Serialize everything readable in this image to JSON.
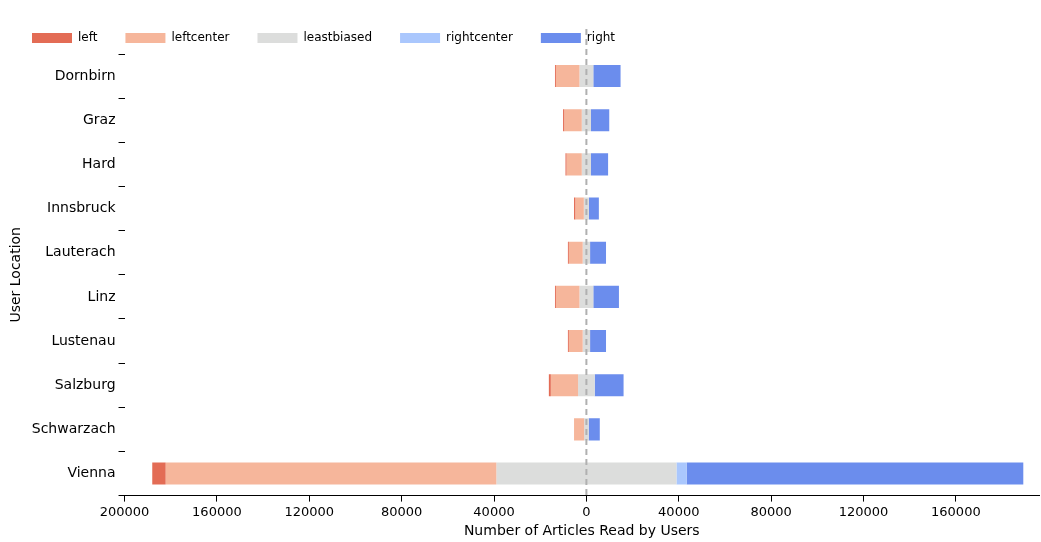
{
  "chart_data": {
    "type": "bar",
    "orientation": "horizontal",
    "xlabel": "Number of Articles Read by Users",
    "ylabel": "User Location",
    "categories": [
      "Dornbirn",
      "Graz",
      "Hard",
      "Innsbruck",
      "Lauterach",
      "Linz",
      "Lustenau",
      "Salzburg",
      "Schwarzach",
      "Vienna"
    ],
    "series": [
      {
        "name": "left",
        "color": "#e36c55",
        "values": [
          400,
          500,
          450,
          550,
          400,
          400,
          400,
          850,
          null,
          5800
        ],
        "base": [
          -13600,
          -10100,
          -9050,
          -5350,
          -8000,
          -13600,
          -8000,
          -16250,
          null,
          -188000
        ]
      },
      {
        "name": "leftcenter",
        "color": "#f6b69b",
        "values": [
          10200,
          7600,
          6600,
          3700,
          6000,
          10200,
          6000,
          11800,
          4350,
          143200
        ],
        "base": [
          -13200,
          -9600,
          -8600,
          -4800,
          -7600,
          -13200,
          -7600,
          -15400,
          -5350,
          -182200
        ]
      },
      {
        "name": "leastbiased",
        "color": "#dcdddc",
        "values": [
          6000,
          4000,
          4000,
          2200,
          3200,
          6000,
          3200,
          7200,
          2000,
          78000
        ],
        "base": [
          -3000,
          -2000,
          -2000,
          -1100,
          -1600,
          -3000,
          -1600,
          -3600,
          -1000,
          -39000
        ]
      },
      {
        "name": "rightcenter",
        "color": "#aac7fd",
        "values": [
          null,
          null,
          null,
          null,
          null,
          null,
          null,
          null,
          null,
          4400
        ],
        "base": [
          null,
          null,
          null,
          null,
          null,
          null,
          null,
          null,
          null,
          39000
        ]
      },
      {
        "name": "right",
        "color": "#6b8ded",
        "values": [
          11800,
          7900,
          7400,
          4300,
          6900,
          11100,
          6900,
          12500,
          4800,
          145800
        ],
        "base": [
          3000,
          2000,
          2000,
          1100,
          1600,
          3000,
          1600,
          3600,
          1000,
          43400
        ]
      }
    ],
    "xlim": [
      -200000,
      196000
    ],
    "xticks": [
      {
        "value": -200000,
        "label": "200000"
      },
      {
        "value": -160000,
        "label": "160000"
      },
      {
        "value": -120000,
        "label": "120000"
      },
      {
        "value": -80000,
        "label": "80000"
      },
      {
        "value": -40000,
        "label": "40000"
      },
      0,
      40000,
      80000,
      120000,
      160000
    ],
    "ref_lines": [
      {
        "axis": "x",
        "value": 0,
        "color": "#b0b0b0",
        "line_style": "dashed"
      }
    ],
    "grid": false,
    "legend": "top"
  }
}
